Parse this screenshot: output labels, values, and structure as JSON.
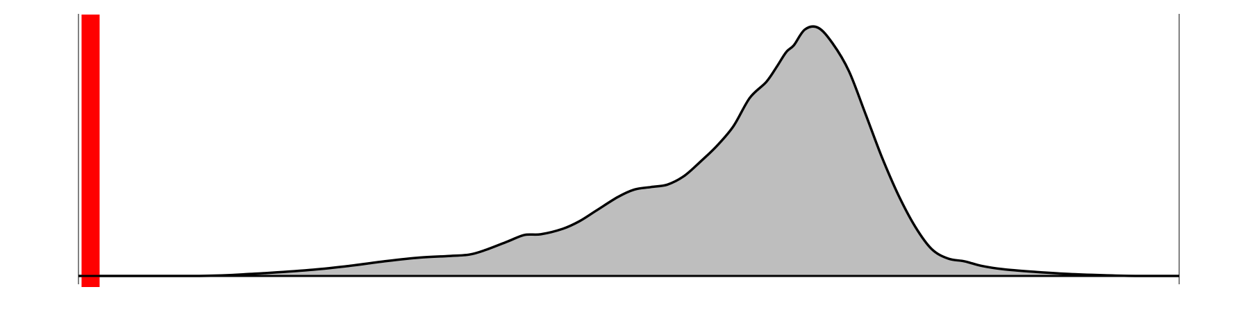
{
  "chart_data": {
    "type": "area",
    "title": "",
    "xlabel": "",
    "ylabel": "",
    "xlim": [
      0,
      1
    ],
    "ylim": [
      0,
      1
    ],
    "grid": false,
    "legend": "none",
    "series": [
      {
        "x": [
          0.0,
          0.11,
          0.16,
          0.21,
          0.245,
          0.28,
          0.31,
          0.335,
          0.355,
          0.37,
          0.39,
          0.405,
          0.42,
          0.44,
          0.455,
          0.47,
          0.49,
          0.505,
          0.52,
          0.535,
          0.55,
          0.565,
          0.58,
          0.595,
          0.61,
          0.625,
          0.635,
          0.643,
          0.65,
          0.66,
          0.672,
          0.685,
          0.7,
          0.715,
          0.73,
          0.745,
          0.76,
          0.775,
          0.79,
          0.805,
          0.82,
          0.84,
          0.87,
          0.9,
          0.93,
          0.96,
          1.0
        ],
        "y": [
          0.0,
          0.0,
          0.009,
          0.024,
          0.04,
          0.06,
          0.074,
          0.08,
          0.086,
          0.105,
          0.139,
          0.165,
          0.168,
          0.19,
          0.22,
          0.262,
          0.318,
          0.348,
          0.358,
          0.368,
          0.402,
          0.46,
          0.524,
          0.603,
          0.718,
          0.782,
          0.847,
          0.902,
          0.93,
          0.993,
          1.0,
          0.938,
          0.825,
          0.653,
          0.478,
          0.325,
          0.2,
          0.109,
          0.07,
          0.059,
          0.041,
          0.027,
          0.016,
          0.008,
          0.003,
          0.0,
          0.0
        ],
        "fill": "#bebebe",
        "stroke": "#000000"
      }
    ],
    "marker": {
      "x": 0.011,
      "color": "#ff0000"
    }
  }
}
